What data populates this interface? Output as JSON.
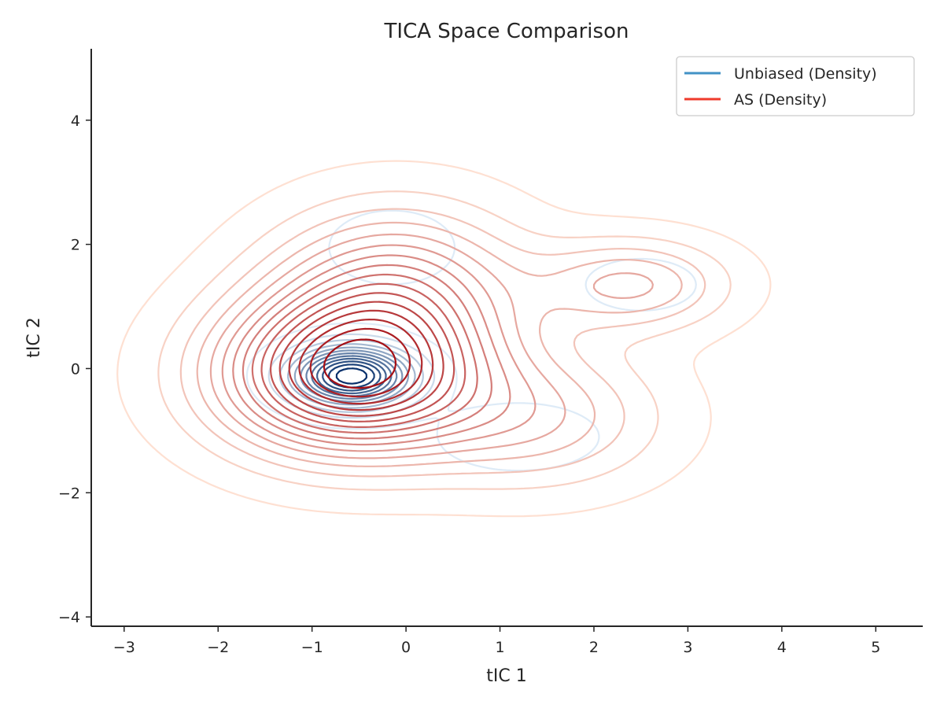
{
  "chart_data": {
    "type": "contour",
    "title": "TICA Space Comparison",
    "xlabel": "tIC 1",
    "ylabel": "tIC 2",
    "xlim": [
      -3.35,
      5.5
    ],
    "ylim": [
      -4.15,
      5.15
    ],
    "xticks": [
      -3,
      -2,
      -1,
      0,
      1,
      2,
      3,
      4,
      5
    ],
    "yticks": [
      -4,
      -2,
      0,
      2,
      4
    ],
    "xtick_labels": [
      "−3",
      "−2",
      "−1",
      "0",
      "1",
      "2",
      "3",
      "4",
      "5"
    ],
    "ytick_labels": [
      "−4",
      "−2",
      "0",
      "2",
      "4"
    ],
    "grid": false,
    "legend_position": "top-right",
    "series": [
      {
        "name": "Unbiased (Density)",
        "color": "#4292c6",
        "colormap": "Blues",
        "levels": 12,
        "modes": [
          {
            "x": -0.58,
            "y": -0.12,
            "sx": 0.42,
            "sy": 0.32,
            "w": 1.0
          },
          {
            "x": -0.15,
            "y": 1.95,
            "sx": 0.45,
            "sy": 0.4,
            "w": 0.09
          },
          {
            "x": 2.5,
            "y": 1.35,
            "sx": 0.45,
            "sy": 0.32,
            "w": 0.07
          },
          {
            "x": 1.2,
            "y": -1.1,
            "sx": 0.55,
            "sy": 0.35,
            "w": 0.1
          }
        ]
      },
      {
        "name": "AS (Density)",
        "color": "#ef3b2c",
        "colormap": "Reds",
        "levels": 16,
        "modes": [
          {
            "x": -0.6,
            "y": -0.1,
            "sx": 0.95,
            "sy": 0.85,
            "w": 1.0
          },
          {
            "x": -0.1,
            "y": 1.3,
            "sx": 0.9,
            "sy": 0.9,
            "w": 0.45
          },
          {
            "x": 2.4,
            "y": 1.35,
            "sx": 0.7,
            "sy": 0.5,
            "w": 0.32
          },
          {
            "x": 1.4,
            "y": -0.8,
            "sx": 0.9,
            "sy": 0.75,
            "w": 0.28
          }
        ]
      }
    ]
  }
}
